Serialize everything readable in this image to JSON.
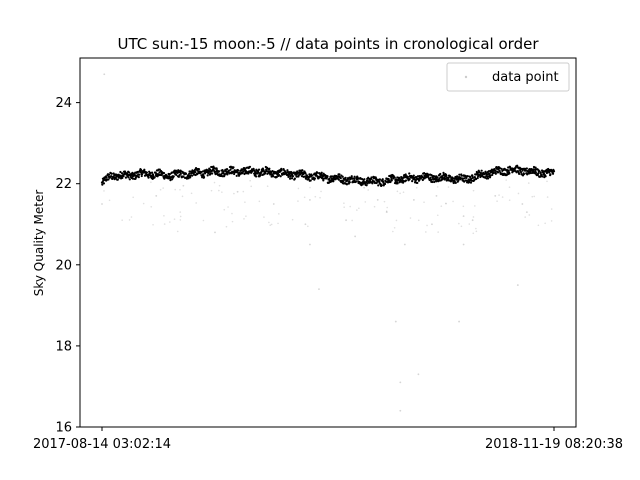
{
  "chart_data": {
    "type": "scatter",
    "title": "UTC sun:-15 moon:-5 // data points in cronological order",
    "xlabel": "",
    "ylabel": "Sky Quality Meter",
    "x_tick_labels": [
      "2017-08-14 03:02:14",
      "2018-11-19 08:20:38"
    ],
    "xlim": [
      0,
      1
    ],
    "ylim": [
      16,
      25.1
    ],
    "y_ticks": [
      16,
      18,
      20,
      22,
      24
    ],
    "grid": false,
    "legend": {
      "entries": [
        "data point"
      ],
      "placement": "top-right"
    },
    "series": [
      {
        "name": "data point",
        "color": "#000000",
        "trend": {
          "x": [
            0.0,
            0.02,
            0.05,
            0.1,
            0.15,
            0.2,
            0.25,
            0.3,
            0.35,
            0.4,
            0.45,
            0.5,
            0.55,
            0.6,
            0.65,
            0.7,
            0.75,
            0.8,
            0.85,
            0.9,
            0.95,
            1.0
          ],
          "y": [
            22.0,
            22.2,
            22.2,
            22.25,
            22.2,
            22.25,
            22.3,
            22.3,
            22.3,
            22.25,
            22.2,
            22.15,
            22.1,
            22.05,
            22.1,
            22.15,
            22.15,
            22.1,
            22.25,
            22.35,
            22.3,
            22.25
          ]
        },
        "outliers": [
          {
            "x": 0.0,
            "y": 21.5
          },
          {
            "x": 0.005,
            "y": 24.7
          },
          {
            "x": 0.46,
            "y": 21.6
          },
          {
            "x": 0.45,
            "y": 21.0
          },
          {
            "x": 0.46,
            "y": 20.5
          },
          {
            "x": 0.48,
            "y": 19.4
          },
          {
            "x": 0.54,
            "y": 21.1
          },
          {
            "x": 0.56,
            "y": 20.7
          },
          {
            "x": 0.63,
            "y": 21.3
          },
          {
            "x": 0.65,
            "y": 18.6
          },
          {
            "x": 0.66,
            "y": 16.4
          },
          {
            "x": 0.66,
            "y": 17.1
          },
          {
            "x": 0.67,
            "y": 20.5
          },
          {
            "x": 0.69,
            "y": 21.6
          },
          {
            "x": 0.7,
            "y": 17.3
          },
          {
            "x": 0.73,
            "y": 21.0
          },
          {
            "x": 0.74,
            "y": 21.7
          },
          {
            "x": 0.79,
            "y": 18.6
          },
          {
            "x": 0.8,
            "y": 21.2
          },
          {
            "x": 0.8,
            "y": 20.5
          },
          {
            "x": 0.82,
            "y": 21.1
          },
          {
            "x": 0.87,
            "y": 21.7
          },
          {
            "x": 0.93,
            "y": 21.5
          },
          {
            "x": 0.94,
            "y": 21.3
          },
          {
            "x": 0.92,
            "y": 19.5
          },
          {
            "x": 0.25,
            "y": 20.8
          },
          {
            "x": 0.3,
            "y": 21.8
          },
          {
            "x": 0.18,
            "y": 21.95
          },
          {
            "x": 0.12,
            "y": 21.7
          },
          {
            "x": 0.38,
            "y": 21.5
          },
          {
            "x": 0.58,
            "y": 21.9
          },
          {
            "x": 0.61,
            "y": 21.6
          }
        ]
      }
    ]
  }
}
